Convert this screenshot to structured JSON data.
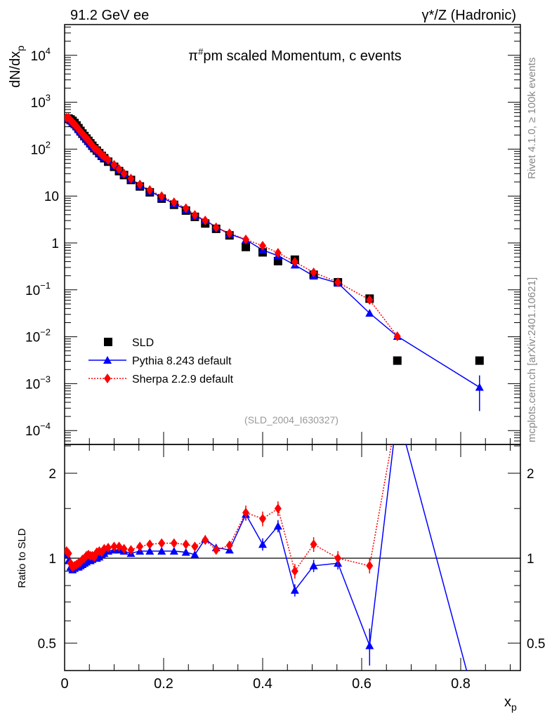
{
  "header": {
    "left": "91.2 GeV ee",
    "right": "γ*/Z (Hadronic)"
  },
  "side": {
    "top": "Rivet 4.1.0, ≥ 100k events",
    "bottom": "mcplots.cern.ch [arXiv:2401.10621]"
  },
  "chart_data": {
    "type": "line",
    "title": "π#pm scaled Momentum, c events",
    "title_parts": {
      "pi": "π",
      "sup": "#",
      "rest": "pm scaled Momentum, c events"
    },
    "ylabel": "dN/dx_p",
    "ylabel_parts": {
      "main": "dN/dx",
      "sub": "p"
    },
    "xlabel": "x_p",
    "xlabel_parts": {
      "main": "x",
      "sub": "p"
    },
    "ratio_ylabel": "Ratio to SLD",
    "analysis_tag": "(SLD_2004_I630327)",
    "xlim": [
      0,
      0.92
    ],
    "ylim": [
      5e-05,
      46000
    ],
    "ratio_ylim": [
      0.4,
      2.53
    ],
    "yscale": "log",
    "ratio_yscale": "log",
    "xticks": [
      "0",
      "0.2",
      "0.4",
      "0.6",
      "0.8"
    ],
    "yticks": [
      {
        "b": "10",
        "e": "4"
      },
      {
        "b": "10",
        "e": "3"
      },
      {
        "b": "10",
        "e": "2"
      },
      {
        "b": "10",
        "e": ""
      },
      {
        "b": "1",
        "e": ""
      },
      {
        "b": "10",
        "e": "−1"
      },
      {
        "b": "10",
        "e": "−2"
      },
      {
        "b": "10",
        "e": "−3"
      },
      {
        "b": "10",
        "e": "−4"
      }
    ],
    "ratio_yticks": [
      "2",
      "1",
      "0.5"
    ],
    "legend": [
      "SLD",
      "Pythia 8.243 default",
      "Sherpa 2.2.9 default"
    ],
    "legend_position": "lower-left",
    "colors": {
      "SLD": "#000000",
      "Pythia": "#0000ff",
      "Sherpa": "#ff0000"
    },
    "x": [
      0.004,
      0.008,
      0.012,
      0.016,
      0.02,
      0.024,
      0.028,
      0.032,
      0.036,
      0.04,
      0.044,
      0.048,
      0.052,
      0.056,
      0.06,
      0.065,
      0.07,
      0.075,
      0.08,
      0.088,
      0.1,
      0.11,
      0.12,
      0.134,
      0.152,
      0.172,
      0.196,
      0.221,
      0.245,
      0.263,
      0.284,
      0.306,
      0.333,
      0.366,
      0.4,
      0.431,
      0.465,
      0.503,
      0.552,
      0.616,
      0.672,
      0.838
    ],
    "sld": [
      440,
      450,
      430,
      400,
      360,
      320,
      280,
      245,
      215,
      190,
      168,
      150,
      133,
      118,
      105,
      93,
      82,
      72,
      64,
      54,
      42,
      34,
      28,
      22,
      16,
      12,
      8.8,
      6.5,
      4.9,
      3.6,
      2.6,
      2.0,
      1.45,
      0.82,
      0.63,
      0.41,
      0.44,
      0.21,
      0.145,
      0.065,
      0.0031,
      0.0031
    ],
    "pythia_ratio": [
      1.03,
      0.98,
      0.93,
      0.91,
      0.92,
      0.93,
      0.93,
      0.94,
      0.95,
      0.96,
      0.97,
      0.98,
      0.98,
      0.99,
      1.0,
      1.0,
      1.01,
      1.03,
      1.04,
      1.06,
      1.07,
      1.07,
      1.06,
      1.04,
      1.06,
      1.06,
      1.06,
      1.06,
      1.05,
      1.03,
      1.17,
      1.09,
      1.07,
      1.43,
      1.12,
      1.3,
      0.77,
      0.94,
      0.96,
      0.49,
      3.3,
      0.27
    ],
    "sherpa_ratio": [
      1.06,
      1.04,
      0.96,
      0.93,
      0.94,
      0.95,
      0.96,
      0.97,
      0.99,
      1.0,
      1.02,
      1.03,
      1.02,
      1.02,
      1.01,
      1.05,
      1.06,
      1.05,
      1.08,
      1.09,
      1.1,
      1.1,
      1.08,
      1.07,
      1.1,
      1.12,
      1.13,
      1.13,
      1.12,
      1.1,
      1.16,
      1.07,
      1.11,
      1.45,
      1.38,
      1.5,
      0.9,
      1.12,
      1.0,
      0.94,
      3.3,
      null
    ]
  }
}
